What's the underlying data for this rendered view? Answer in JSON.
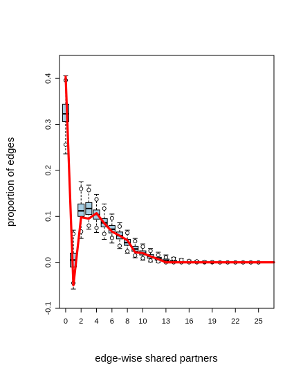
{
  "chart_data": {
    "type": "boxplot",
    "xlabel": "edge-wise shared partners",
    "ylabel": "proportion of edges",
    "xlim": [
      -0.8,
      27
    ],
    "ylim": [
      -0.1,
      0.45
    ],
    "x_ticks": [
      0,
      2,
      4,
      6,
      8,
      10,
      13,
      16,
      19,
      22,
      25
    ],
    "y_ticks": [
      -0.1,
      0.0,
      0.1,
      0.2,
      0.3,
      0.4
    ],
    "colors": {
      "box_fill": "#a6cee3",
      "observed_line": "#ff0000",
      "frame": "#000000"
    },
    "observed": {
      "x": [
        0,
        1,
        2,
        3,
        4,
        5,
        6,
        7,
        8,
        9,
        10,
        11,
        12,
        13,
        14,
        15,
        16,
        17,
        18,
        19,
        20,
        21,
        22,
        23,
        24,
        25,
        26,
        27
      ],
      "y": [
        0.404,
        -0.05,
        0.098,
        0.095,
        0.107,
        0.085,
        0.067,
        0.058,
        0.048,
        0.022,
        0.02,
        0.013,
        0.007,
        0.0,
        0.0,
        0.0,
        0.0,
        0.0,
        0.0,
        0.0,
        0.0,
        0.0,
        0.0,
        0.0,
        0.0,
        0.0,
        0.0,
        0.0
      ]
    },
    "boxes": [
      {
        "x": 0,
        "whisker_low": 0.236,
        "q1": 0.306,
        "median": 0.323,
        "q3": 0.344,
        "whisker_high": 0.406,
        "interval_low": 0.256,
        "interval_high": 0.396
      },
      {
        "x": 1,
        "whisker_low": -0.058,
        "q1": -0.01,
        "median": 0.005,
        "q3": 0.02,
        "whisker_high": 0.07,
        "interval_low": -0.045,
        "interval_high": 0.062
      },
      {
        "x": 2,
        "whisker_low": 0.052,
        "q1": 0.1,
        "median": 0.112,
        "q3": 0.127,
        "whisker_high": 0.175,
        "interval_low": 0.067,
        "interval_high": 0.16
      },
      {
        "x": 3,
        "whisker_low": 0.072,
        "q1": 0.104,
        "median": 0.117,
        "q3": 0.13,
        "whisker_high": 0.168,
        "interval_low": 0.08,
        "interval_high": 0.157
      },
      {
        "x": 4,
        "whisker_low": 0.065,
        "q1": 0.094,
        "median": 0.104,
        "q3": 0.114,
        "whisker_high": 0.148,
        "interval_low": 0.075,
        "interval_high": 0.137
      },
      {
        "x": 5,
        "whisker_low": 0.05,
        "q1": 0.077,
        "median": 0.086,
        "q3": 0.095,
        "whisker_high": 0.127,
        "interval_low": 0.062,
        "interval_high": 0.117
      },
      {
        "x": 6,
        "whisker_low": 0.042,
        "q1": 0.064,
        "median": 0.072,
        "q3": 0.08,
        "whisker_high": 0.105,
        "interval_low": 0.053,
        "interval_high": 0.096
      },
      {
        "x": 7,
        "whisker_low": 0.03,
        "q1": 0.051,
        "median": 0.058,
        "q3": 0.066,
        "whisker_high": 0.086,
        "interval_low": 0.036,
        "interval_high": 0.078
      },
      {
        "x": 8,
        "whisker_low": 0.02,
        "q1": 0.037,
        "median": 0.043,
        "q3": 0.05,
        "whisker_high": 0.07,
        "interval_low": 0.024,
        "interval_high": 0.064
      },
      {
        "x": 9,
        "whisker_low": 0.01,
        "q1": 0.024,
        "median": 0.029,
        "q3": 0.035,
        "whisker_high": 0.052,
        "interval_low": 0.015,
        "interval_high": 0.046
      },
      {
        "x": 10,
        "whisker_low": 0.005,
        "q1": 0.016,
        "median": 0.02,
        "q3": 0.025,
        "whisker_high": 0.04,
        "interval_low": 0.009,
        "interval_high": 0.034
      },
      {
        "x": 11,
        "whisker_low": 0.001,
        "q1": 0.009,
        "median": 0.013,
        "q3": 0.017,
        "whisker_high": 0.03,
        "interval_low": 0.004,
        "interval_high": 0.025
      },
      {
        "x": 12,
        "whisker_low": 0.0,
        "q1": 0.005,
        "median": 0.008,
        "q3": 0.011,
        "whisker_high": 0.022,
        "interval_low": 0.002,
        "interval_high": 0.016
      },
      {
        "x": 13,
        "whisker_low": 0.0,
        "q1": 0.002,
        "median": 0.004,
        "q3": 0.007,
        "whisker_high": 0.016,
        "interval_low": 0.0,
        "interval_high": 0.011
      },
      {
        "x": 14,
        "whisker_low": 0.0,
        "q1": 0.001,
        "median": 0.002,
        "q3": 0.004,
        "whisker_high": 0.011,
        "interval_low": 0.0,
        "interval_high": 0.008
      },
      {
        "x": 15,
        "whisker_low": 0.0,
        "q1": 0.0,
        "median": 0.001,
        "q3": 0.002,
        "whisker_high": 0.008,
        "interval_low": 0.0,
        "interval_high": 0.005
      },
      {
        "x": 16,
        "whisker_low": 0.0,
        "q1": 0.0,
        "median": 0.0,
        "q3": 0.001,
        "whisker_high": 0.005,
        "interval_low": 0.0,
        "interval_high": 0.003
      },
      {
        "x": 17,
        "whisker_low": 0.0,
        "q1": 0.0,
        "median": 0.0,
        "q3": 0.001,
        "whisker_high": 0.004,
        "interval_low": 0.0,
        "interval_high": 0.002
      },
      {
        "x": 18,
        "whisker_low": 0.0,
        "q1": 0.0,
        "median": 0.0,
        "q3": 0.0,
        "whisker_high": 0.003,
        "interval_low": 0.0,
        "interval_high": 0.001
      },
      {
        "x": 19,
        "whisker_low": 0.0,
        "q1": 0.0,
        "median": 0.0,
        "q3": 0.0,
        "whisker_high": 0.002,
        "interval_low": 0.0,
        "interval_high": 0.001
      },
      {
        "x": 20,
        "whisker_low": 0.0,
        "q1": 0.0,
        "median": 0.0,
        "q3": 0.0,
        "whisker_high": 0.001,
        "interval_low": 0.0,
        "interval_high": 0.0
      },
      {
        "x": 21,
        "whisker_low": 0.0,
        "q1": 0.0,
        "median": 0.0,
        "q3": 0.0,
        "whisker_high": 0.001,
        "interval_low": 0.0,
        "interval_high": 0.0
      },
      {
        "x": 22,
        "whisker_low": 0.0,
        "q1": 0.0,
        "median": 0.0,
        "q3": 0.0,
        "whisker_high": 0.001,
        "interval_low": 0.0,
        "interval_high": 0.0
      },
      {
        "x": 23,
        "whisker_low": 0.0,
        "q1": 0.0,
        "median": 0.0,
        "q3": 0.0,
        "whisker_high": 0.0,
        "interval_low": 0.0,
        "interval_high": 0.0
      },
      {
        "x": 24,
        "whisker_low": 0.0,
        "q1": 0.0,
        "median": 0.0,
        "q3": 0.0,
        "whisker_high": 0.0,
        "interval_low": 0.0,
        "interval_high": 0.0
      },
      {
        "x": 25,
        "whisker_low": 0.0,
        "q1": 0.0,
        "median": 0.0,
        "q3": 0.0,
        "whisker_high": 0.0,
        "interval_low": 0.0,
        "interval_high": 0.0
      }
    ]
  }
}
